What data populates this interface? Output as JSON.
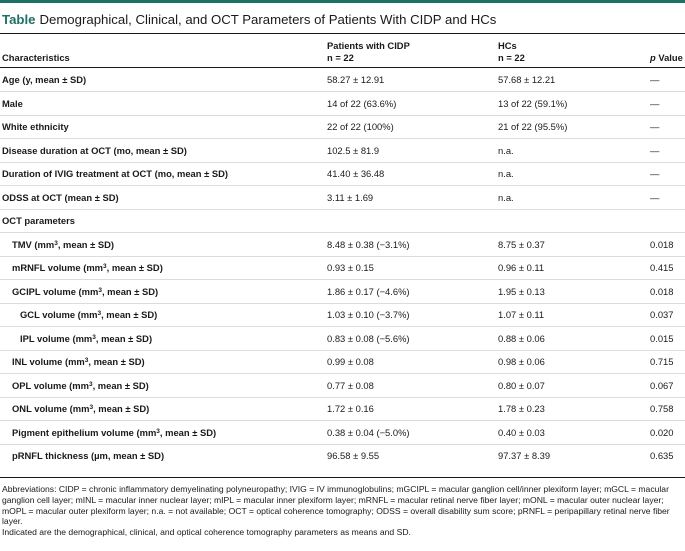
{
  "title": {
    "lead": "Table",
    "text": "Demographical, Clinical, and OCT Parameters of Patients With CIDP and HCs"
  },
  "headers": {
    "characteristics": "Characteristics",
    "cidp_line1": "Patients with CIDP",
    "cidp_line2": "n = 22",
    "hc_line1": "HCs",
    "hc_line2": "n = 22",
    "p_italic": "p",
    "p_rest": " Value"
  },
  "rows": [
    {
      "pre": "Age (y, mean ± SD)",
      "sup": "",
      "post": "",
      "cidp": "58.27 ± 12.91",
      "hc": "57.68 ± 12.21",
      "p": "—",
      "indent": 0
    },
    {
      "pre": "Male",
      "sup": "",
      "post": "",
      "cidp": "14 of 22 (63.6%)",
      "hc": "13 of 22 (59.1%)",
      "p": "—",
      "indent": 0
    },
    {
      "pre": "White ethnicity",
      "sup": "",
      "post": "",
      "cidp": "22 of 22 (100%)",
      "hc": "21 of 22 (95.5%)",
      "p": "—",
      "indent": 0
    },
    {
      "pre": "Disease duration at OCT (mo, mean ± SD)",
      "sup": "",
      "post": "",
      "cidp": "102.5 ± 81.9",
      "hc": "n.a.",
      "p": "—",
      "indent": 0
    },
    {
      "pre": "Duration of IVIG treatment at OCT (mo, mean ± SD)",
      "sup": "",
      "post": "",
      "cidp": "41.40 ± 36.48",
      "hc": "n.a.",
      "p": "—",
      "indent": 0
    },
    {
      "pre": "ODSS at OCT (mean ± SD)",
      "sup": "",
      "post": "",
      "cidp": "3.11 ± 1.69",
      "hc": "n.a.",
      "p": "—",
      "indent": 0
    },
    {
      "pre": "OCT parameters",
      "sup": "",
      "post": "",
      "cidp": "",
      "hc": "",
      "p": "",
      "indent": 0
    },
    {
      "pre": "TMV (mm",
      "sup": "3",
      "post": ", mean ± SD)",
      "cidp": "8.48 ± 0.38 (−3.1%)",
      "hc": "8.75 ± 0.37",
      "p": "0.018",
      "indent": 1
    },
    {
      "pre": "mRNFL volume (mm",
      "sup": "3",
      "post": ", mean ± SD)",
      "cidp": "0.93 ± 0.15",
      "hc": "0.96 ± 0.11",
      "p": "0.415",
      "indent": 1
    },
    {
      "pre": "GCIPL volume (mm",
      "sup": "3",
      "post": ", mean ± SD)",
      "cidp": "1.86 ± 0.17 (−4.6%)",
      "hc": "1.95 ± 0.13",
      "p": "0.018",
      "indent": 1
    },
    {
      "pre": "GCL volume (mm",
      "sup": "3",
      "post": ", mean ± SD)",
      "cidp": "1.03 ± 0.10 (−3.7%)",
      "hc": "1.07 ± 0.11",
      "p": "0.037",
      "indent": 2
    },
    {
      "pre": "IPL volume (mm",
      "sup": "3",
      "post": ", mean ± SD)",
      "cidp": "0.83 ± 0.08 (−5.6%)",
      "hc": "0.88 ± 0.06",
      "p": "0.015",
      "indent": 2
    },
    {
      "pre": "INL volume (mm",
      "sup": "3",
      "post": ", mean ± SD)",
      "cidp": "0.99 ± 0.08",
      "hc": "0.98 ± 0.06",
      "p": "0.715",
      "indent": 1
    },
    {
      "pre": "OPL volume (mm",
      "sup": "3",
      "post": ", mean ± SD)",
      "cidp": "0.77 ± 0.08",
      "hc": "0.80 ± 0.07",
      "p": "0.067",
      "indent": 1
    },
    {
      "pre": "ONL volume (mm",
      "sup": "3",
      "post": ", mean ± SD)",
      "cidp": "1.72 ± 0.16",
      "hc": "1.78 ± 0.23",
      "p": "0.758",
      "indent": 1
    },
    {
      "pre": "Pigment epithelium volume (mm",
      "sup": "3",
      "post": ", mean ± SD)",
      "cidp": "0.38 ± 0.04 (−5.0%)",
      "hc": "0.40 ± 0.03",
      "p": "0.020",
      "indent": 1
    },
    {
      "pre": "pRNFL thickness (µm, mean ± SD)",
      "sup": "",
      "post": "",
      "cidp": "96.58 ± 9.55",
      "hc": "97.37 ± 8.39",
      "p": "0.635",
      "indent": 1
    }
  ],
  "footnotes": {
    "abbreviations": "Abbreviations: CIDP = chronic inflammatory demyelinating polyneuropathy; IVIG = IV immunoglobulins; mGCIPL = macular ganglion cell/inner plexiform layer; mGCL = macular ganglion cell layer; mINL = macular inner nuclear layer; mIPL = macular inner plexiform layer; mRNFL = macular retinal nerve fiber layer; mONL = macular outer nuclear layer; mOPL = macular outer plexiform layer; n.a. = not available; OCT = optical coherence tomography; ODSS = overall disability sum score; pRNFL = peripapillary retinal nerve fiber layer.",
    "note": "Indicated are the demographical, clinical, and optical coherence tomography parameters as means and SD."
  }
}
